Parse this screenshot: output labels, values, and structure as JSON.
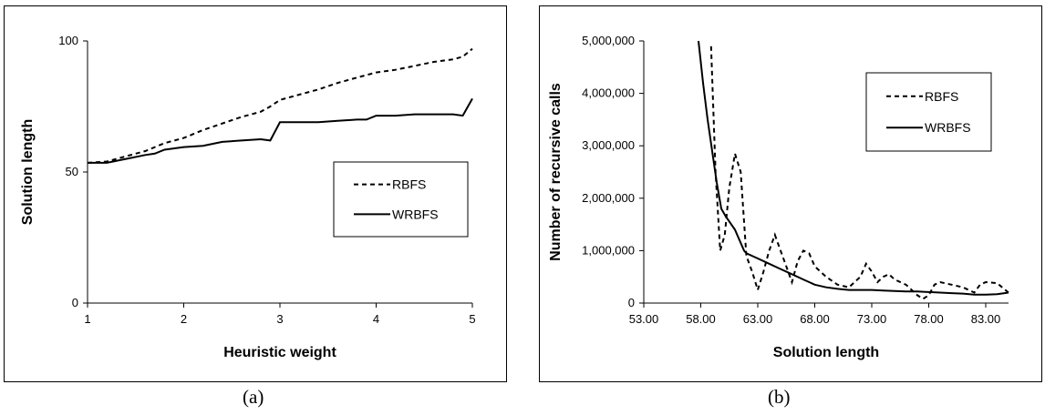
{
  "captions": {
    "a": "(a)",
    "b": "(b)"
  },
  "chart_data": [
    {
      "type": "line",
      "panel": "a",
      "title": "",
      "xlabel": "Heuristic weight",
      "ylabel": "Solution length",
      "xlim": [
        1,
        5
      ],
      "ylim": [
        0,
        100
      ],
      "xticks": [
        1,
        2,
        3,
        4,
        5
      ],
      "yticks": [
        0,
        50,
        100
      ],
      "xtick_labels": [
        "1",
        "2",
        "3",
        "4",
        "5"
      ],
      "ytick_labels": [
        "0",
        "50",
        "100"
      ],
      "grid": false,
      "legend_position": "center-right",
      "series": [
        {
          "name": "RBFS",
          "style": "dashed",
          "color": "#000000",
          "x": [
            1.0,
            1.2,
            1.4,
            1.6,
            1.8,
            2.0,
            2.2,
            2.4,
            2.6,
            2.8,
            2.9,
            3.0,
            3.2,
            3.4,
            3.6,
            3.8,
            4.0,
            4.2,
            4.4,
            4.6,
            4.8,
            4.9,
            5.0
          ],
          "y": [
            53.5,
            54,
            56,
            58,
            61,
            63,
            66,
            68.5,
            71,
            73,
            75,
            77.5,
            79.5,
            81.5,
            84,
            86,
            88,
            89,
            90.5,
            92,
            93,
            94,
            97
          ]
        },
        {
          "name": "WRBFS",
          "style": "solid",
          "color": "#000000",
          "x": [
            1.0,
            1.2,
            1.4,
            1.6,
            1.7,
            1.8,
            2.0,
            2.2,
            2.4,
            2.6,
            2.8,
            2.9,
            3.0,
            3.2,
            3.4,
            3.6,
            3.8,
            3.9,
            4.0,
            4.2,
            4.4,
            4.6,
            4.8,
            4.9,
            5.0
          ],
          "y": [
            53.5,
            53.5,
            55,
            56.5,
            57,
            58.5,
            59.5,
            60,
            61.5,
            62,
            62.5,
            62,
            69,
            69,
            69,
            69.5,
            70,
            70,
            71.5,
            71.5,
            72,
            72,
            72,
            71.5,
            78
          ]
        }
      ]
    },
    {
      "type": "line",
      "panel": "b",
      "title": "",
      "xlabel": "Solution length",
      "ylabel": "Number of recursive calls",
      "xlim": [
        53,
        85
      ],
      "ylim": [
        0,
        5000000
      ],
      "xticks": [
        53,
        58,
        63,
        68,
        73,
        78,
        83
      ],
      "yticks": [
        0,
        1000000,
        2000000,
        3000000,
        4000000,
        5000000
      ],
      "xtick_labels": [
        "53.00",
        "58.00",
        "63.00",
        "68.00",
        "73.00",
        "78.00",
        "83.00"
      ],
      "ytick_labels": [
        "0",
        "1,000,000",
        "2,000,000",
        "3,000,000",
        "4,000,000",
        "5,000,000"
      ],
      "grid": false,
      "legend_position": "top-right",
      "series": [
        {
          "name": "RBFS",
          "style": "dashed",
          "color": "#000000",
          "x": [
            58.9,
            59.3,
            59.7,
            60.1,
            60.5,
            61.0,
            61.5,
            62.0,
            62.5,
            63.0,
            63.5,
            64.0,
            64.5,
            65.0,
            65.5,
            66.0,
            66.5,
            67.0,
            67.5,
            68.0,
            69.0,
            70.0,
            71.0,
            72.0,
            72.5,
            73.0,
            73.5,
            74.0,
            74.5,
            75.0,
            76.0,
            76.5,
            77.0,
            77.5,
            78.0,
            78.5,
            79.0,
            80.0,
            81.0,
            82.0,
            82.5,
            83.0,
            84.0,
            85.0
          ],
          "y": [
            4900000,
            2500000,
            1000000,
            1300000,
            2200000,
            2850000,
            2500000,
            900000,
            600000,
            250000,
            600000,
            1000000,
            1300000,
            1000000,
            700000,
            400000,
            800000,
            1000000,
            950000,
            700000,
            500000,
            350000,
            300000,
            500000,
            750000,
            600000,
            400000,
            500000,
            550000,
            450000,
            350000,
            250000,
            150000,
            80000,
            150000,
            350000,
            400000,
            350000,
            300000,
            200000,
            350000,
            400000,
            380000,
            200000
          ]
        },
        {
          "name": "WRBFS",
          "style": "solid",
          "color": "#000000",
          "x": [
            57.8,
            58.2,
            58.6,
            59.0,
            59.4,
            59.8,
            60.2,
            61.0,
            61.8,
            62.0,
            63.0,
            64.0,
            65.0,
            66.0,
            67.0,
            68.0,
            69.0,
            70.0,
            71.0,
            72.0,
            73.0,
            74.0,
            75.0,
            76.0,
            77.0,
            78.0,
            79.0,
            80.0,
            81.0,
            82.0,
            83.0,
            84.0,
            85.0
          ],
          "y": [
            5000000,
            4200000,
            3500000,
            2900000,
            2300000,
            1800000,
            1650000,
            1400000,
            1000000,
            950000,
            850000,
            750000,
            650000,
            550000,
            450000,
            350000,
            300000,
            270000,
            250000,
            250000,
            250000,
            240000,
            230000,
            220000,
            220000,
            210000,
            200000,
            190000,
            180000,
            160000,
            160000,
            170000,
            200000
          ]
        }
      ]
    }
  ]
}
